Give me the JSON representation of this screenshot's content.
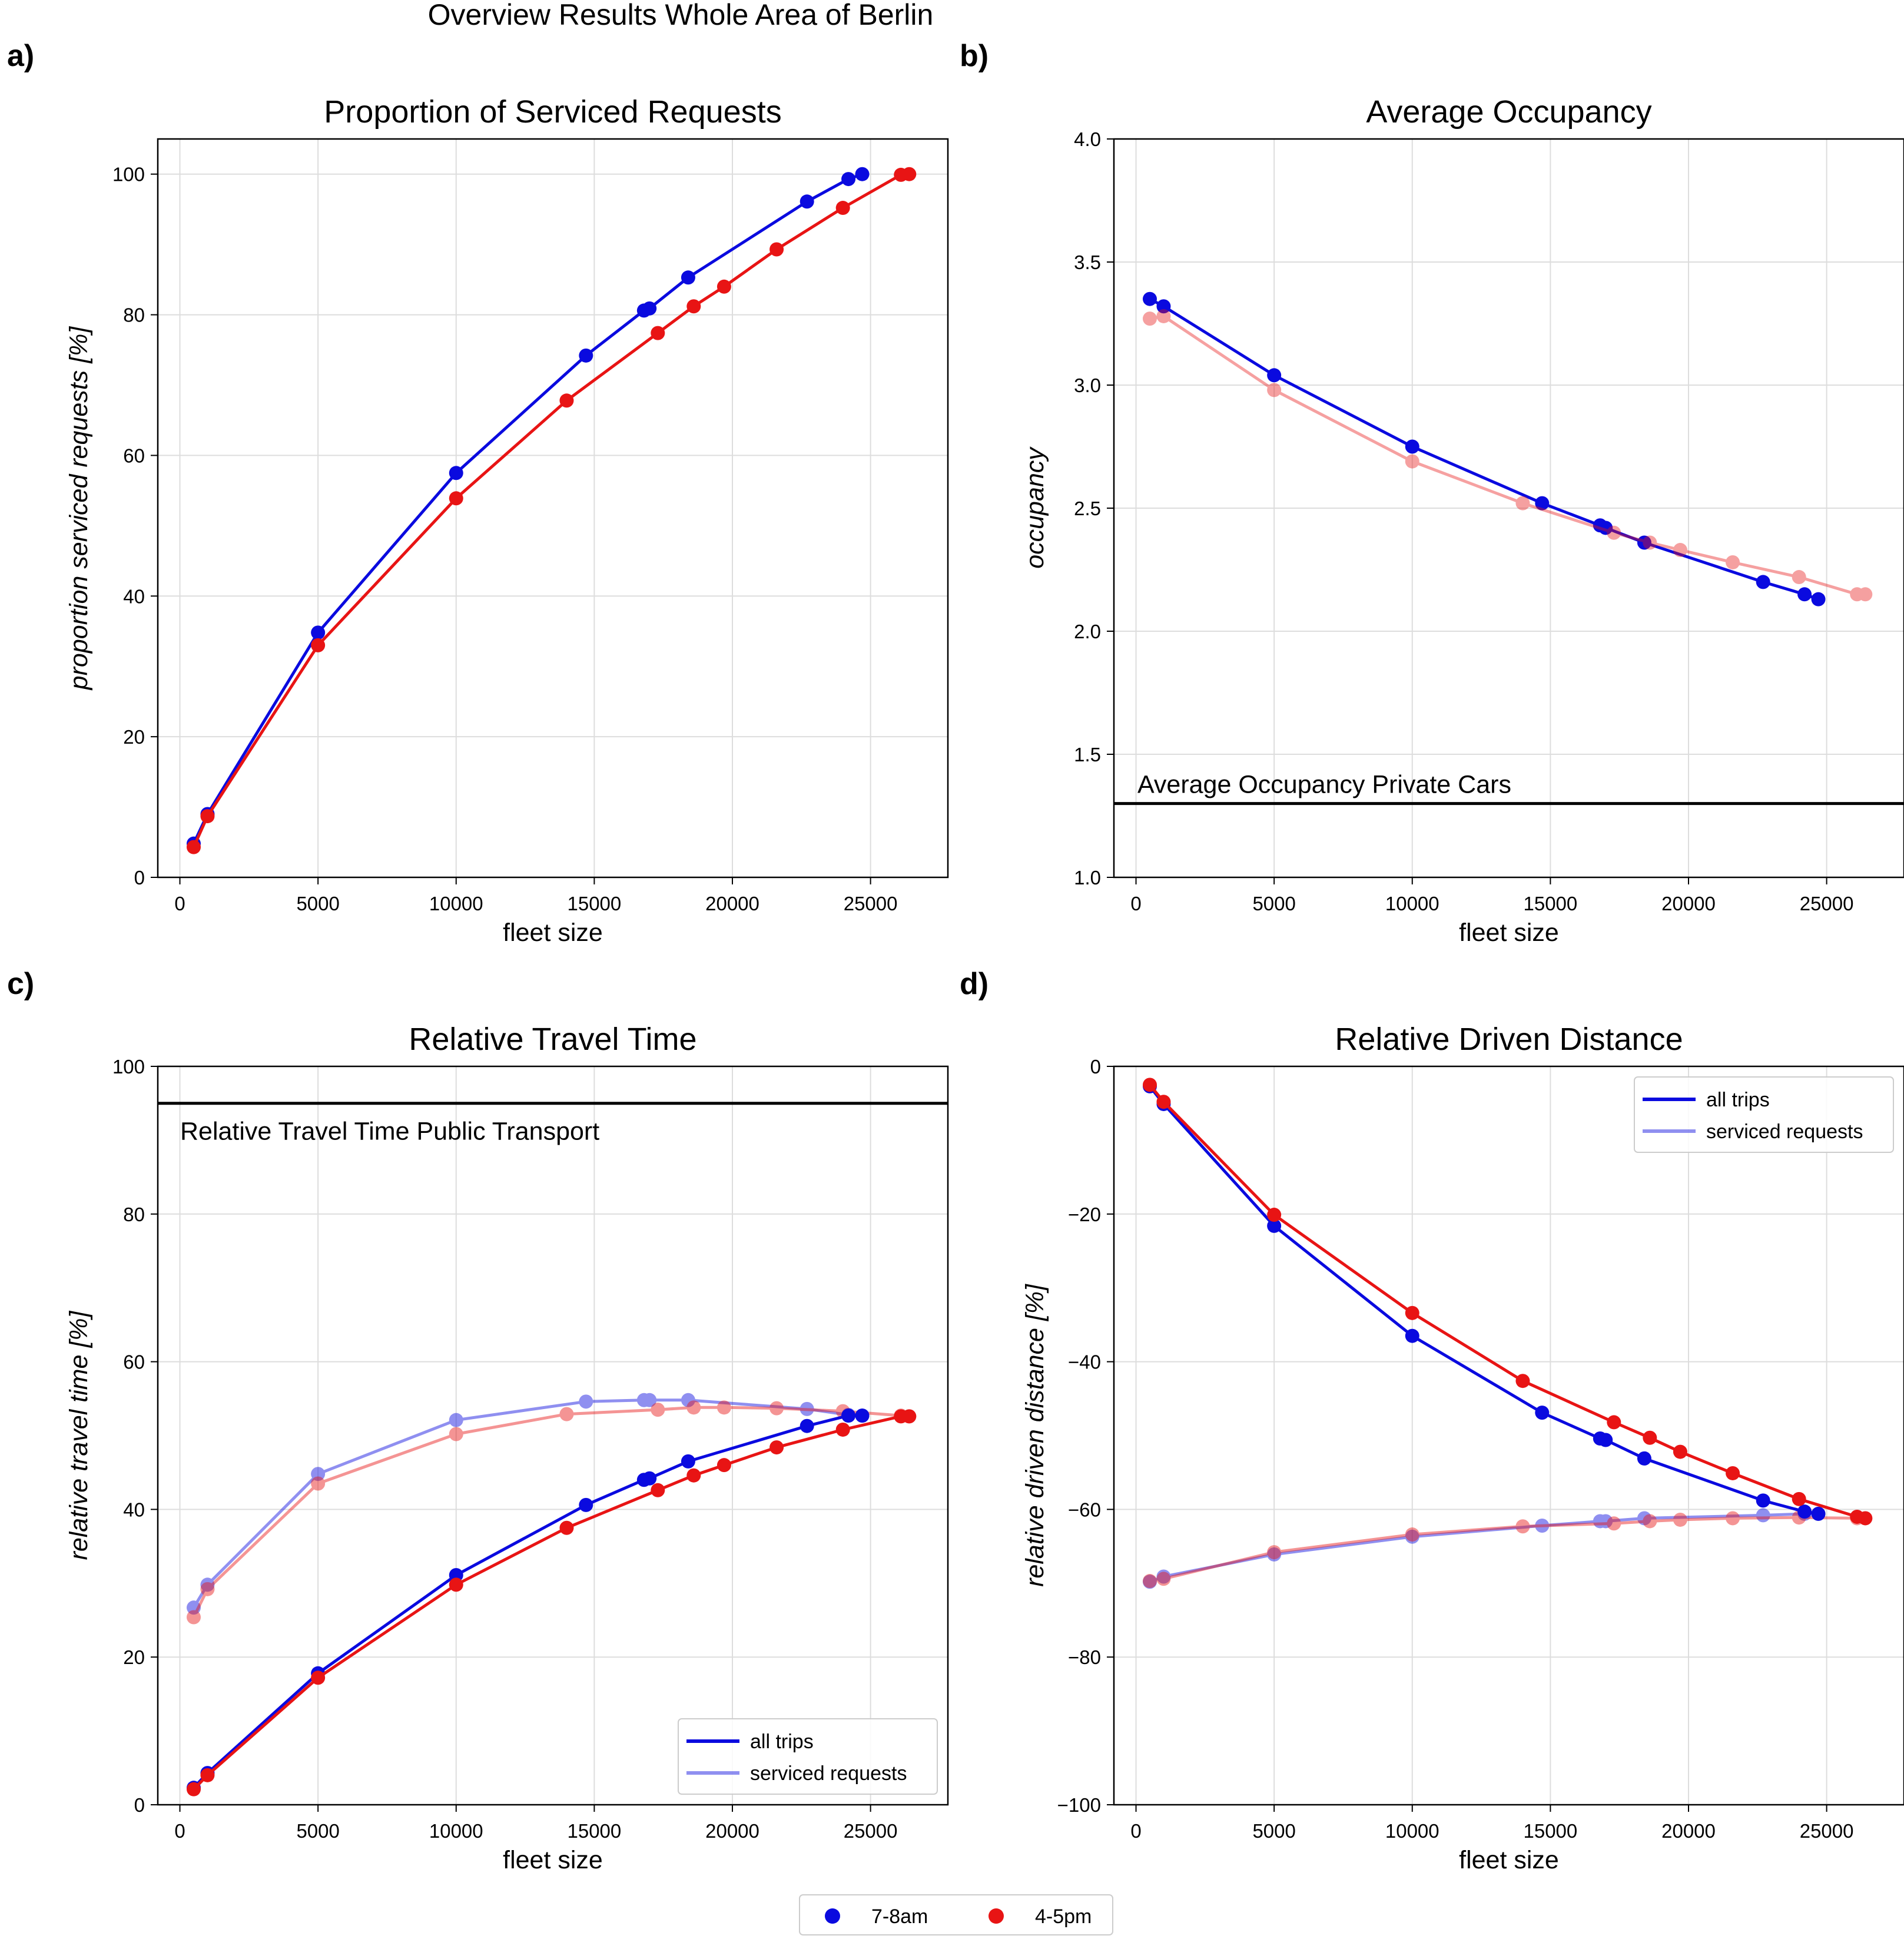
{
  "suptitle": "Overview Results Whole Area of Berlin",
  "colors": {
    "morning": "#0a0adf",
    "afternoon": "#e81414",
    "grid": "#dddddd",
    "axis": "#000000"
  },
  "figure_legend": {
    "items": [
      {
        "label": "7-8am",
        "color": "#0a0adf"
      },
      {
        "label": "4-5pm",
        "color": "#e81414"
      }
    ]
  },
  "panels": [
    {
      "letter": "a)"
    },
    {
      "letter": "b)"
    },
    {
      "letter": "c)"
    },
    {
      "letter": "d)"
    }
  ],
  "chart_data": [
    {
      "type": "line",
      "title": "Proportion of Serviced Requests",
      "xlabel": "fleet size",
      "ylabel": "proportion serviced requests [%]",
      "xlim": [
        -800,
        27800
      ],
      "ylim": [
        0,
        105
      ],
      "xticks": [
        0,
        5000,
        10000,
        15000,
        20000,
        25000
      ],
      "yticks": [
        0,
        20,
        40,
        60,
        80,
        100
      ],
      "grid": true,
      "series": [
        {
          "period": "7-8am",
          "kind": "all trips",
          "color": "#0a0adf",
          "alpha": 1,
          "x": [
            500,
            1000,
            5000,
            10000,
            14700,
            16800,
            17000,
            18400,
            22700,
            24200,
            24700
          ],
          "y": [
            4.8,
            9.0,
            34.8,
            57.5,
            74.2,
            80.6,
            80.9,
            85.3,
            96.1,
            99.3,
            100
          ]
        },
        {
          "period": "4-5pm",
          "kind": "all trips",
          "color": "#e81414",
          "alpha": 1,
          "x": [
            500,
            1000,
            5000,
            10000,
            14000,
            17300,
            18600,
            19700,
            21600,
            24000,
            26100,
            26400
          ],
          "y": [
            4.3,
            8.7,
            33.0,
            53.9,
            67.8,
            77.4,
            81.2,
            84.0,
            89.3,
            95.2,
            99.9,
            100
          ]
        }
      ]
    },
    {
      "type": "line",
      "title": "Average Occupancy",
      "xlabel": "fleet size",
      "ylabel": "occupancy",
      "xlim": [
        -800,
        27800
      ],
      "ylim": [
        1.0,
        4.0
      ],
      "xticks": [
        0,
        5000,
        10000,
        15000,
        20000,
        25000
      ],
      "yticks": [
        1.0,
        1.5,
        2.0,
        2.5,
        3.0,
        3.5,
        4.0
      ],
      "ytick_labels": [
        "1.0",
        "1.5",
        "2.0",
        "2.5",
        "3.0",
        "3.5",
        "4.0"
      ],
      "grid": true,
      "hline": {
        "y": 1.3,
        "label": "Average Occupancy Private Cars"
      },
      "series": [
        {
          "period": "7-8am",
          "kind": "all trips",
          "color": "#0a0adf",
          "alpha": 1,
          "x": [
            500,
            1000,
            5000,
            10000,
            14700,
            16800,
            17000,
            18400,
            22700,
            24200,
            24700
          ],
          "y": [
            3.35,
            3.32,
            3.04,
            2.75,
            2.52,
            2.43,
            2.42,
            2.36,
            2.2,
            2.15,
            2.13
          ]
        },
        {
          "period": "4-5pm",
          "kind": "all trips",
          "color": "#e81414",
          "alpha": 0.4,
          "x": [
            500,
            1000,
            5000,
            10000,
            14000,
            17300,
            18600,
            19700,
            21600,
            24000,
            26100,
            26400
          ],
          "y": [
            3.27,
            3.28,
            2.98,
            2.69,
            2.52,
            2.4,
            2.36,
            2.33,
            2.28,
            2.22,
            2.15,
            2.15
          ]
        }
      ]
    },
    {
      "type": "line",
      "title": "Relative Travel Time",
      "xlabel": "fleet size",
      "ylabel": "relative travel time [%]",
      "xlim": [
        -800,
        27800
      ],
      "ylim": [
        0,
        100
      ],
      "xticks": [
        0,
        5000,
        10000,
        15000,
        20000,
        25000
      ],
      "yticks": [
        0,
        20,
        40,
        60,
        80,
        100
      ],
      "grid": true,
      "hline": {
        "y": 95,
        "label": "Relative Travel Time Public Transport"
      },
      "legend": {
        "placement": "lower-right",
        "items": [
          {
            "label": "all trips",
            "alpha": 1
          },
          {
            "label": "serviced requests",
            "alpha": 0.45
          }
        ]
      },
      "series": [
        {
          "period": "7-8am",
          "kind": "all trips",
          "color": "#0a0adf",
          "alpha": 1,
          "x": [
            500,
            1000,
            5000,
            10000,
            14700,
            16800,
            17000,
            18400,
            22700,
            24200,
            24700
          ],
          "y": [
            2.3,
            4.3,
            17.8,
            31.1,
            40.6,
            44.0,
            44.2,
            46.5,
            51.3,
            52.7,
            52.7
          ]
        },
        {
          "period": "4-5pm",
          "kind": "all trips",
          "color": "#e81414",
          "alpha": 1,
          "x": [
            500,
            1000,
            5000,
            10000,
            14000,
            17300,
            18600,
            19700,
            21600,
            24000,
            26100,
            26400
          ],
          "y": [
            2.1,
            4.0,
            17.2,
            29.8,
            37.5,
            42.6,
            44.6,
            46.0,
            48.4,
            50.8,
            52.6,
            52.6
          ]
        },
        {
          "period": "7-8am",
          "kind": "serviced requests",
          "color": "#0a0adf",
          "alpha": 0.45,
          "x": [
            500,
            1000,
            5000,
            10000,
            14700,
            16800,
            17000,
            18400,
            22700,
            24200,
            24700
          ],
          "y": [
            26.7,
            29.8,
            44.8,
            52.1,
            54.6,
            54.8,
            54.8,
            54.8,
            53.6,
            52.8,
            52.7
          ]
        },
        {
          "period": "4-5pm",
          "kind": "serviced requests",
          "color": "#e81414",
          "alpha": 0.45,
          "x": [
            500,
            1000,
            5000,
            10000,
            14000,
            17300,
            18600,
            19700,
            21600,
            24000,
            26100,
            26400
          ],
          "y": [
            25.4,
            29.2,
            43.5,
            50.2,
            52.9,
            53.5,
            53.8,
            53.8,
            53.7,
            53.3,
            52.7,
            52.6
          ]
        }
      ]
    },
    {
      "type": "line",
      "title": "Relative Driven Distance",
      "xlabel": "fleet size",
      "ylabel": "relative driven distance [%]",
      "xlim": [
        -800,
        27800
      ],
      "ylim": [
        -100,
        0
      ],
      "xticks": [
        0,
        5000,
        10000,
        15000,
        20000,
        25000
      ],
      "yticks": [
        -100,
        -80,
        -60,
        -40,
        -20,
        0
      ],
      "ytick_labels": [
        "−100",
        "−80",
        "−60",
        "−40",
        "−20",
        "0"
      ],
      "grid": true,
      "legend": {
        "placement": "upper-right",
        "items": [
          {
            "label": "all trips",
            "alpha": 1
          },
          {
            "label": "serviced requests",
            "alpha": 0.45
          }
        ]
      },
      "series": [
        {
          "period": "7-8am",
          "kind": "all trips",
          "color": "#0a0adf",
          "alpha": 1,
          "x": [
            500,
            1000,
            5000,
            10000,
            14700,
            16800,
            17000,
            18400,
            22700,
            24200,
            24700
          ],
          "y": [
            -2.7,
            -5.1,
            -21.6,
            -36.5,
            -46.9,
            -50.4,
            -50.6,
            -53.1,
            -58.8,
            -60.3,
            -60.6
          ]
        },
        {
          "period": "4-5pm",
          "kind": "all trips",
          "color": "#e81414",
          "alpha": 1,
          "x": [
            500,
            1000,
            5000,
            10000,
            14000,
            17300,
            18600,
            19700,
            21600,
            24000,
            26100,
            26400
          ],
          "y": [
            -2.5,
            -4.8,
            -20.1,
            -33.4,
            -42.6,
            -48.2,
            -50.3,
            -52.2,
            -55.1,
            -58.6,
            -61.0,
            -61.2
          ]
        },
        {
          "period": "7-8am",
          "kind": "serviced requests",
          "color": "#0a0adf",
          "alpha": 0.45,
          "x": [
            500,
            1000,
            5000,
            10000,
            14700,
            16800,
            17000,
            18400,
            22700,
            24200,
            24700
          ],
          "y": [
            -69.8,
            -69.1,
            -66.1,
            -63.7,
            -62.2,
            -61.6,
            -61.6,
            -61.2,
            -60.8,
            -60.6,
            -60.6
          ]
        },
        {
          "period": "4-5pm",
          "kind": "serviced requests",
          "color": "#e81414",
          "alpha": 0.45,
          "x": [
            500,
            1000,
            5000,
            10000,
            14000,
            17300,
            18600,
            19700,
            21600,
            24000,
            26100,
            26400
          ],
          "y": [
            -69.7,
            -69.4,
            -65.8,
            -63.4,
            -62.3,
            -61.9,
            -61.6,
            -61.4,
            -61.2,
            -61.1,
            -61.2,
            -61.2
          ]
        }
      ]
    }
  ]
}
